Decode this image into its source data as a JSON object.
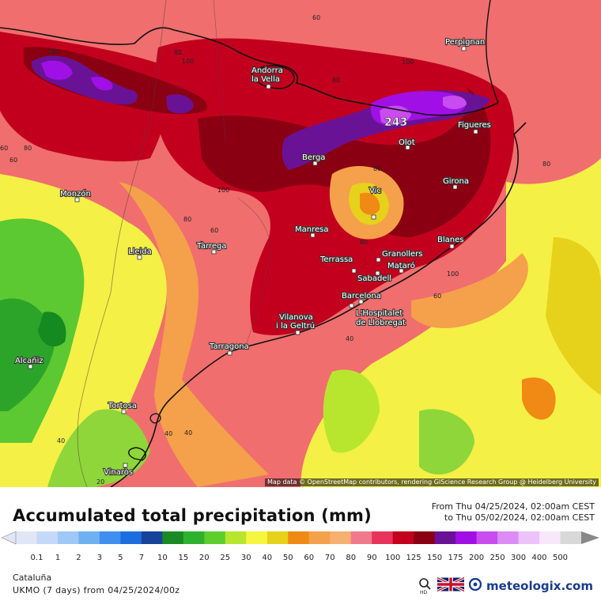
{
  "map": {
    "peak_label": "243",
    "cities": [
      {
        "name": "Perpignan"
      },
      {
        "name": "Andorra"
      },
      {
        "name": "la Vella"
      },
      {
        "name": "Figueres"
      },
      {
        "name": "Olot"
      },
      {
        "name": "Berga"
      },
      {
        "name": "Girona"
      },
      {
        "name": "Monzón"
      },
      {
        "name": "Vic"
      },
      {
        "name": "Manresa"
      },
      {
        "name": "Blanes"
      },
      {
        "name": "Lleida"
      },
      {
        "name": "Tàrrega"
      },
      {
        "name": "Terrassa"
      },
      {
        "name": "Granollers"
      },
      {
        "name": "Mataró"
      },
      {
        "name": "Sabadell"
      },
      {
        "name": "Barcelona"
      },
      {
        "name": "Vilanova"
      },
      {
        "name": "i la Geltrú"
      },
      {
        "name": "L'Hospitalet"
      },
      {
        "name": "de Llobregat"
      },
      {
        "name": "Tarragona"
      },
      {
        "name": "Alcañiz"
      },
      {
        "name": "Tortosa"
      },
      {
        "name": "Vinaròs"
      }
    ],
    "contour_labels": [
      "100",
      "80",
      "60",
      "80",
      "100",
      "80",
      "100",
      "60",
      "100",
      "80",
      "80",
      "60",
      "80",
      "80",
      "100",
      "60",
      "40",
      "40",
      "40",
      "20",
      "40",
      "60",
      "80"
    ],
    "attribution": "Map data © OpenStreetMap contributors, rendering GIScience Research Group @ Heidelberg University"
  },
  "title": "Accumulated total precipitation (mm)",
  "date_from": "From Thu 04/25/2024, 02:00am CEST",
  "date_to": "to Thu 05/02/2024, 02:00am CEST",
  "legend": {
    "ticks": [
      "0.1",
      "1",
      "2",
      "3",
      "5",
      "7",
      "10",
      "15",
      "20",
      "25",
      "30",
      "40",
      "50",
      "60",
      "70",
      "80",
      "90",
      "100",
      "125",
      "150",
      "175",
      "200",
      "250",
      "300",
      "400",
      "500"
    ],
    "colors": [
      "#e0e6f6",
      "#c4d8f8",
      "#9ec8f6",
      "#6fb0f2",
      "#3e8ff0",
      "#1c6ee0",
      "#15449a",
      "#1a8a26",
      "#2eb22e",
      "#5ece2c",
      "#b8e62e",
      "#f6f640",
      "#e6d21a",
      "#f08a14",
      "#f5a04a",
      "#f6b070",
      "#f07a8c",
      "#e8345a",
      "#c2001e",
      "#8a0012",
      "#6a1296",
      "#a010e6",
      "#c84cf0",
      "#dc8cf4",
      "#ecc2f8",
      "#f8e6fa",
      "#d8d8d8"
    ]
  },
  "region": "Cataluña",
  "model": "UKMO (7 days) from  04/25/2024/00z",
  "brand": "meteologix.com",
  "icons": [
    "hd-search-icon",
    "uk-flag-icon",
    "meteologix-logo-icon"
  ]
}
